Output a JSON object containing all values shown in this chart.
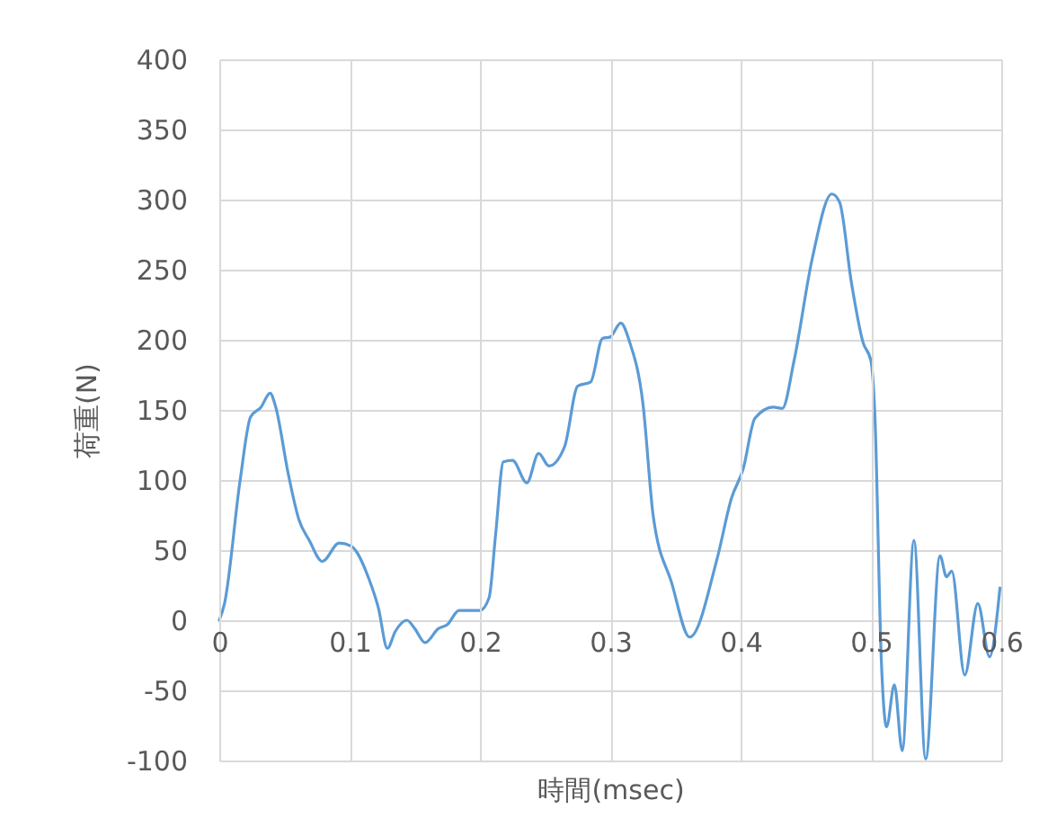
{
  "chart_data": {
    "type": "line",
    "xlabel": "時間(msec)",
    "ylabel": "荷重(N)",
    "xlim": [
      0,
      0.6
    ],
    "xticks": [
      0,
      0.1,
      0.2,
      0.3,
      0.4,
      0.5,
      0.6
    ],
    "ylim": [
      -100,
      400
    ],
    "yticks": [
      -100,
      -50,
      0,
      50,
      100,
      150,
      200,
      250,
      300,
      350,
      400
    ],
    "grid": true,
    "marker": "none",
    "line_style": "solid",
    "series": [
      {
        "color": "#5b9bd5",
        "x": [
          0,
          0.004,
          0.016,
          0.024,
          0.032,
          0.039,
          0.043,
          0.053,
          0.061,
          0.069,
          0.079,
          0.092,
          0.101,
          0.115,
          0.122,
          0.129,
          0.135,
          0.144,
          0.15,
          0.158,
          0.168,
          0.175,
          0.184,
          0.2,
          0.207,
          0.212,
          0.218,
          0.225,
          0.236,
          0.245,
          0.253,
          0.265,
          0.275,
          0.285,
          0.294,
          0.3,
          0.308,
          0.315,
          0.325,
          0.333,
          0.347,
          0.361,
          0.382,
          0.393,
          0.402,
          0.411,
          0.425,
          0.432,
          0.441,
          0.455,
          0.47,
          0.476,
          0.485,
          0.494,
          0.5,
          0.503,
          0.508,
          0.512,
          0.518,
          0.524,
          0.533,
          0.542,
          0.553,
          0.558,
          0.562,
          0.572,
          0.582,
          0.591,
          0.599
        ],
        "values": [
          0,
          12,
          100,
          145,
          152,
          162,
          153,
          104,
          72,
          57,
          42,
          55,
          53,
          29,
          9,
          -20,
          -8,
          0,
          -6,
          -16,
          -6,
          -3,
          7,
          7,
          16,
          61,
          113,
          114,
          98,
          119,
          110,
          124,
          167,
          170,
          201,
          202,
          212,
          198,
          155,
          74,
          27,
          -12,
          44,
          87,
          108,
          144,
          152,
          151,
          185,
          258,
          304,
          298,
          241,
          198,
          185,
          147,
          -29,
          -76,
          -46,
          -93,
          57,
          -99,
          46,
          31,
          35,
          -39,
          12,
          -26,
          23
        ]
      }
    ]
  }
}
